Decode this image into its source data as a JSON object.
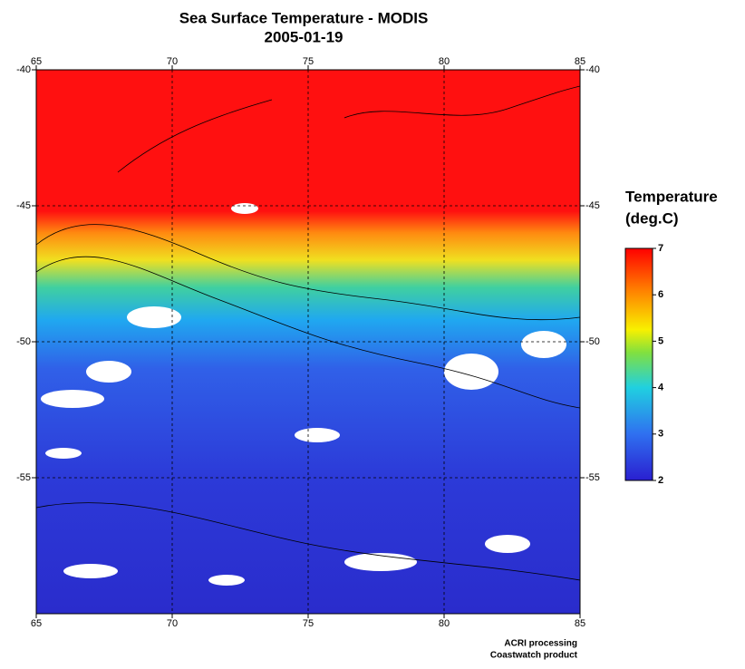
{
  "title": "Sea Surface Temperature - MODIS",
  "subtitle": "2005-01-19",
  "map": {
    "xlim": [
      65,
      85
    ],
    "ylim": [
      -60,
      -40
    ],
    "xticks": [
      65,
      70,
      75,
      80,
      85
    ],
    "yticks": [
      -40,
      -45,
      -50,
      -55
    ]
  },
  "colorbar": {
    "title": [
      "Temperature",
      "(deg.C)"
    ],
    "lim": [
      2,
      7
    ],
    "ticks": [
      2,
      3,
      4,
      5,
      6,
      7
    ]
  },
  "credits": [
    "ACRI processing",
    "Coastwatch product"
  ]
}
